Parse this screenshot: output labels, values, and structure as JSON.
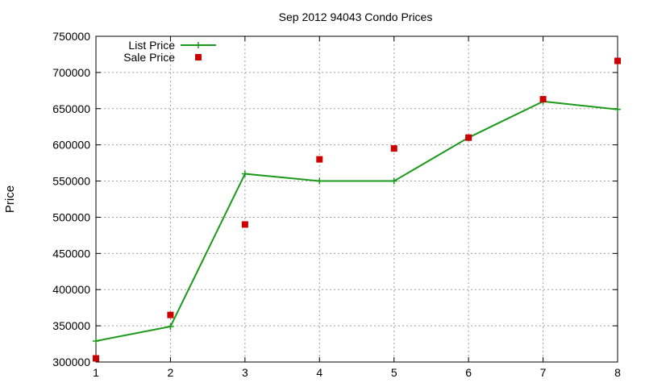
{
  "chart_data": {
    "type": "line",
    "title": "Sep 2012 94043 Condo Prices",
    "xlabel": "",
    "ylabel": "Price",
    "xlim": [
      1,
      8
    ],
    "ylim": [
      300000,
      750000
    ],
    "x_ticks": [
      "1",
      "2",
      "3",
      "4",
      "5",
      "6",
      "7",
      "8"
    ],
    "y_ticks": [
      "300000",
      "350000",
      "400000",
      "450000",
      "500000",
      "550000",
      "600000",
      "650000",
      "700000",
      "750000"
    ],
    "grid": true,
    "legend_position": "top-left",
    "x": [
      1,
      2,
      3,
      4,
      5,
      6,
      7,
      8
    ],
    "series": [
      {
        "name": "List Price",
        "style": "line-with-plus-markers",
        "color": "#1a9a1a",
        "values": [
          329000,
          349000,
          560000,
          550000,
          550000,
          610000,
          660000,
          649000
        ]
      },
      {
        "name": "Sale Price",
        "style": "square-markers",
        "color": "#cc0000",
        "values": [
          305000,
          365000,
          490000,
          580000,
          595000,
          610000,
          663000,
          716000
        ]
      }
    ]
  }
}
